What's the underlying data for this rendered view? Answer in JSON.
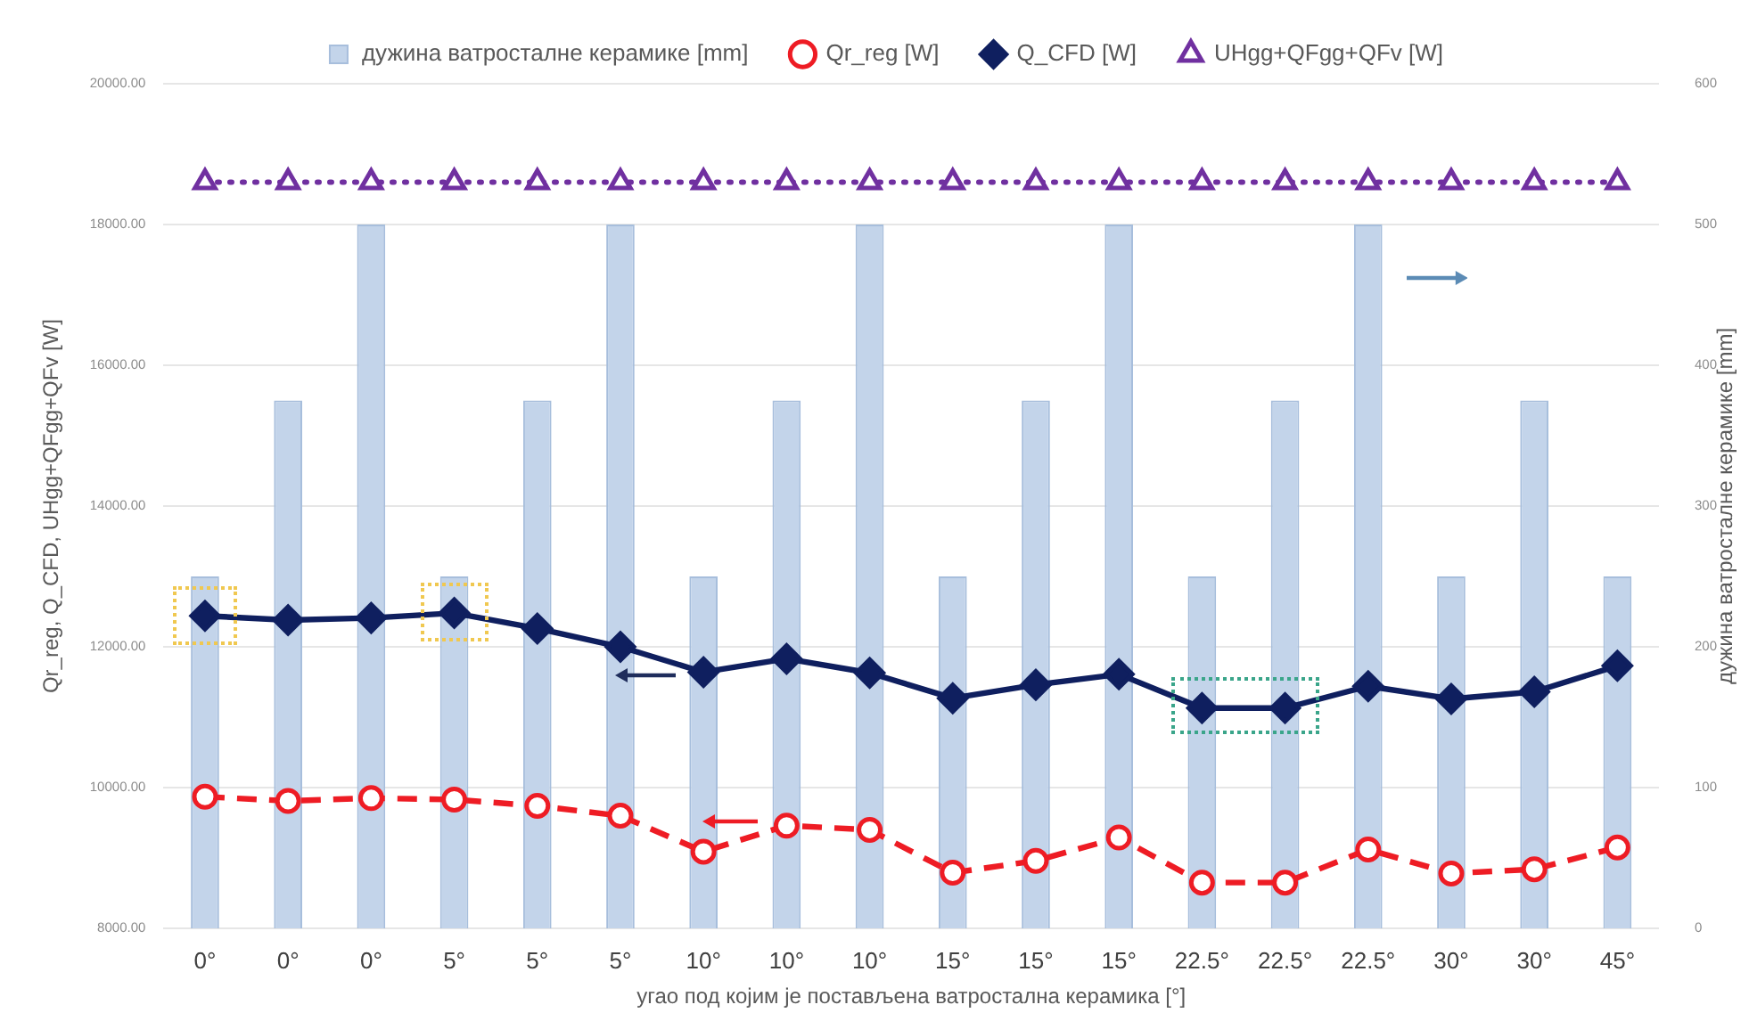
{
  "chart_data": {
    "type": "line",
    "xlabel": "угао под којим је постављена ватростална керамика [°]",
    "ylabel": "Qr_reg, Q_CFD, UHgg+QFgg+QFv [W]",
    "y2label": "дужина ватросталне керамике [mm]",
    "categories": [
      "0°",
      "0°",
      "0°",
      "5°",
      "5°",
      "5°",
      "10°",
      "10°",
      "10°",
      "15°",
      "15°",
      "15°",
      "22.5°",
      "22.5°",
      "22.5°",
      "30°",
      "30°",
      "45°"
    ],
    "series": [
      {
        "name": "дужина ватросталне керамике [mm]",
        "type": "bar",
        "axis": "y2",
        "color": "#c3d4ea",
        "values": [
          250,
          375,
          500,
          250,
          375,
          500,
          250,
          375,
          500,
          250,
          375,
          500,
          250,
          375,
          500,
          250,
          375,
          250
        ]
      },
      {
        "name": "Qr_reg [W]",
        "type": "line",
        "color": "#ee1c24",
        "marker": "circle",
        "line_style": "dashed",
        "values": [
          9870,
          9810,
          9850,
          9830,
          9740,
          9600,
          9090,
          9460,
          9400,
          8790,
          8960,
          9290,
          8650,
          8650,
          9120,
          8780,
          8840,
          9150
        ]
      },
      {
        "name": "Q_CFD [W]",
        "type": "line",
        "color": "#0f1f5f",
        "marker": "diamond",
        "line_style": "solid",
        "values": [
          12440,
          12380,
          12410,
          12480,
          12260,
          12000,
          11640,
          11830,
          11630,
          11270,
          11460,
          11610,
          11130,
          11130,
          11440,
          11260,
          11360,
          11730
        ]
      },
      {
        "name": "UHgg+QFgg+QFv [W]",
        "color": "#7030a0",
        "marker": "triangle",
        "line_style": "dotted",
        "values": [
          18600,
          18600,
          18600,
          18600,
          18600,
          18600,
          18600,
          18600,
          18600,
          18600,
          18600,
          18600,
          18600,
          18600,
          18600,
          18600,
          18600,
          18600
        ]
      }
    ],
    "ylim": [
      8000,
      20000
    ],
    "yticks": [
      {
        "value": 8000,
        "label": "8000.00"
      },
      {
        "value": 10000,
        "label": "10000.00"
      },
      {
        "value": 12000,
        "label": "12000.00"
      },
      {
        "value": 14000,
        "label": "14000.00"
      },
      {
        "value": 16000,
        "label": "16000.00"
      },
      {
        "value": 18000,
        "label": "18000.00"
      },
      {
        "value": 20000,
        "label": "20000.00"
      }
    ],
    "y2lim": [
      0,
      600
    ],
    "y2ticks": [
      0,
      100,
      200,
      300,
      400,
      500,
      600
    ],
    "grid": "y",
    "legend": "top"
  }
}
